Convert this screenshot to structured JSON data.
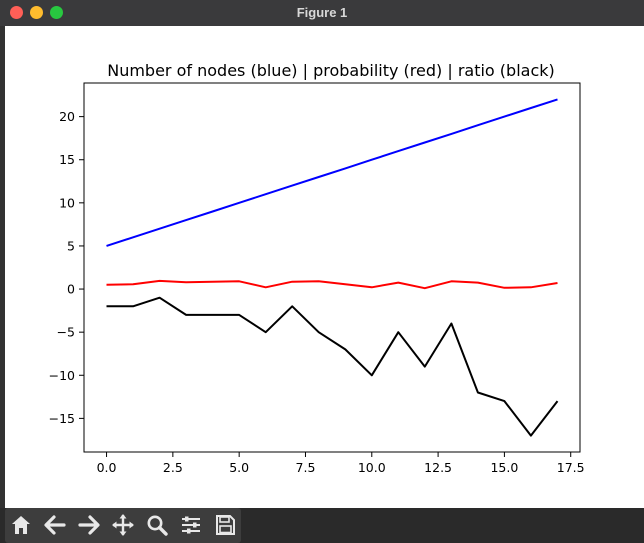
{
  "window": {
    "title": "Figure 1"
  },
  "toolbar": {
    "buttons": [
      {
        "name": "home",
        "icon": "home-icon"
      },
      {
        "name": "back",
        "icon": "arrow-left-icon"
      },
      {
        "name": "forward",
        "icon": "arrow-right-icon"
      },
      {
        "name": "pan",
        "icon": "move-icon"
      },
      {
        "name": "zoom",
        "icon": "zoom-icon"
      },
      {
        "name": "configure-subplots",
        "icon": "sliders-icon"
      },
      {
        "name": "save",
        "icon": "save-icon"
      }
    ]
  },
  "chart_data": {
    "type": "line",
    "title": "Number of nodes (blue) | probability (red) | ratio (black)",
    "xlabel": "",
    "ylabel": "",
    "xlim": [
      -0.85,
      17.85
    ],
    "ylim": [
      -18.9,
      23.9
    ],
    "xticks": [
      "0.0",
      "2.5",
      "5.0",
      "7.5",
      "10.0",
      "12.5",
      "15.0",
      "17.5"
    ],
    "yticks": [
      "−15",
      "−10",
      "−5",
      "0",
      "5",
      "10",
      "15",
      "20"
    ],
    "grid": false,
    "x": [
      0,
      1,
      2,
      3,
      4,
      5,
      6,
      7,
      8,
      9,
      10,
      11,
      12,
      13,
      14,
      15,
      16,
      17
    ],
    "series": [
      {
        "color": "#0000ff",
        "values": [
          5,
          6,
          7,
          8,
          9,
          10,
          11,
          12,
          13,
          14,
          15,
          16,
          17,
          18,
          19,
          20,
          21,
          22
        ]
      },
      {
        "color": "#ff0000",
        "values": [
          0.5,
          0.55,
          0.95,
          0.8,
          0.85,
          0.9,
          0.2,
          0.85,
          0.9,
          0.55,
          0.2,
          0.75,
          0.1,
          0.9,
          0.75,
          0.15,
          0.2,
          0.7
        ]
      },
      {
        "color": "#000000",
        "values": [
          -2,
          -2,
          -1,
          -3,
          -3,
          -3,
          -5,
          -2,
          -5,
          -7,
          -10,
          -5,
          -9,
          -4,
          -12,
          -13,
          -17,
          -13
        ]
      }
    ]
  }
}
